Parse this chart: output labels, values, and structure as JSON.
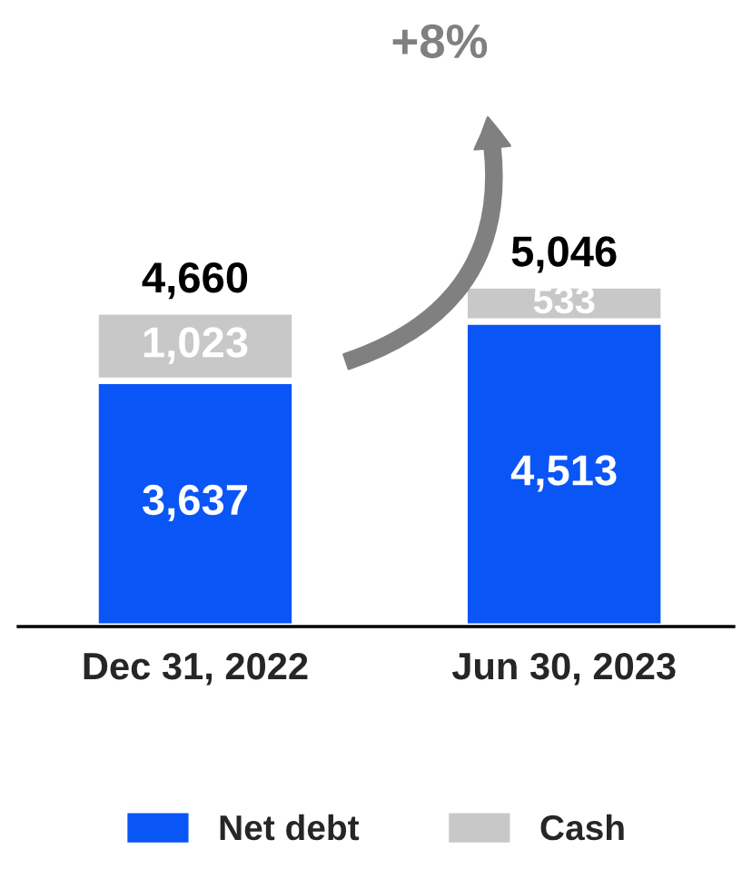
{
  "chart_data": {
    "type": "bar",
    "stacked": true,
    "legend": "bottom",
    "categories": [
      "Dec 31, 2022",
      "Jun 30, 2023"
    ],
    "series": [
      {
        "name": "Net debt",
        "color": "#0a55f5",
        "values": [
          3637,
          4513
        ],
        "value_labels": [
          "3,637",
          "4,513"
        ]
      },
      {
        "name": "Cash",
        "color": "#c8c8c8",
        "values": [
          1023,
          533
        ],
        "value_labels": [
          "1,023",
          "533"
        ]
      }
    ],
    "totals": [
      "4,660",
      "5,046"
    ],
    "annotations": [
      "+8%"
    ]
  }
}
